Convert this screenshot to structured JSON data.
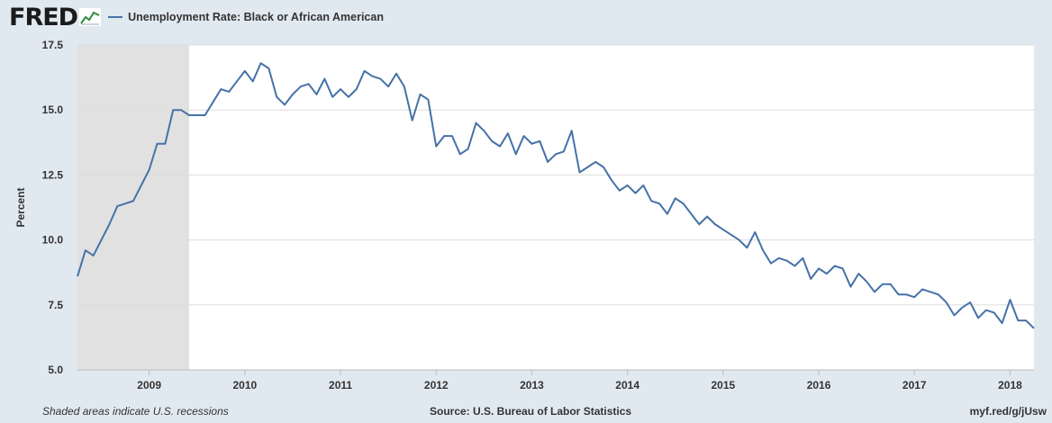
{
  "header": {
    "logo_text": "FRED"
  },
  "chart_data": {
    "type": "line",
    "title": "Unemployment Rate: Black or African American",
    "ylabel": "Percent",
    "xlabel": "",
    "ylim": [
      5.0,
      17.5
    ],
    "yticks": [
      "5.0",
      "7.5",
      "10.0",
      "12.5",
      "15.0",
      "17.5"
    ],
    "ytick_values": [
      5.0,
      7.5,
      10.0,
      12.5,
      15.0,
      17.5
    ],
    "xticks": [
      "2009",
      "2010",
      "2011",
      "2012",
      "2013",
      "2014",
      "2015",
      "2016",
      "2017",
      "2018"
    ],
    "start": "2008-04",
    "end": "2018-04",
    "recession": {
      "start": "2008-04",
      "end": "2009-06"
    },
    "series": [
      {
        "name": "Unemployment Rate: Black or African American",
        "color": "#4572a7",
        "values": [
          8.6,
          9.6,
          9.4,
          10.0,
          10.6,
          11.3,
          11.4,
          11.5,
          12.1,
          12.7,
          13.7,
          13.7,
          15.0,
          15.0,
          14.8,
          14.8,
          14.8,
          15.3,
          15.8,
          15.7,
          16.1,
          16.5,
          16.1,
          16.8,
          16.6,
          15.5,
          15.2,
          15.6,
          15.9,
          16.0,
          15.6,
          16.2,
          15.5,
          15.8,
          15.5,
          15.8,
          16.5,
          16.3,
          16.2,
          15.9,
          16.4,
          15.9,
          14.6,
          15.6,
          15.4,
          13.6,
          14.0,
          14.0,
          13.3,
          13.5,
          14.5,
          14.2,
          13.8,
          13.6,
          14.1,
          13.3,
          14.0,
          13.7,
          13.8,
          13.0,
          13.3,
          13.4,
          14.2,
          12.6,
          12.8,
          13.0,
          12.8,
          12.3,
          11.9,
          12.1,
          11.8,
          12.1,
          11.5,
          11.4,
          11.0,
          11.6,
          11.4,
          11.0,
          10.6,
          10.9,
          10.6,
          10.4,
          10.2,
          10.0,
          9.7,
          10.3,
          9.6,
          9.1,
          9.3,
          9.2,
          9.0,
          9.3,
          8.5,
          8.9,
          8.7,
          9.0,
          8.9,
          8.2,
          8.7,
          8.4,
          8.0,
          8.3,
          8.3,
          7.9,
          7.9,
          7.8,
          8.1,
          8.0,
          7.9,
          7.6,
          7.1,
          7.4,
          7.6,
          7.0,
          7.3,
          7.2,
          6.8,
          7.7,
          6.9,
          6.9,
          6.6
        ]
      }
    ]
  },
  "footer": {
    "note": "Shaded areas indicate U.S. recessions",
    "source": "Source: U.S. Bureau of Labor Statistics",
    "link": "myf.red/g/jUsw"
  }
}
